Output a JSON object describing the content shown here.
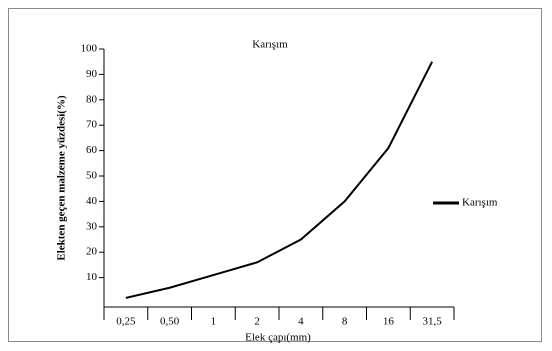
{
  "chart_data": {
    "type": "line",
    "title": "Karışım",
    "xlabel": "Elek çapı(mm)",
    "ylabel": "Elekten geçen malzeme yüzdesi(%)",
    "categories": [
      "0,25",
      "0,50",
      "1",
      "2",
      "4",
      "8",
      "16",
      "31,5"
    ],
    "series": [
      {
        "name": "Karışım",
        "color": "#000000",
        "values": [
          2,
          6,
          11,
          16,
          25,
          40,
          61,
          95
        ]
      }
    ],
    "ylim": [
      0,
      100
    ],
    "yticks": [
      10,
      20,
      30,
      40,
      50,
      60,
      70,
      80,
      90,
      100
    ],
    "legend": "right",
    "grid": false
  }
}
